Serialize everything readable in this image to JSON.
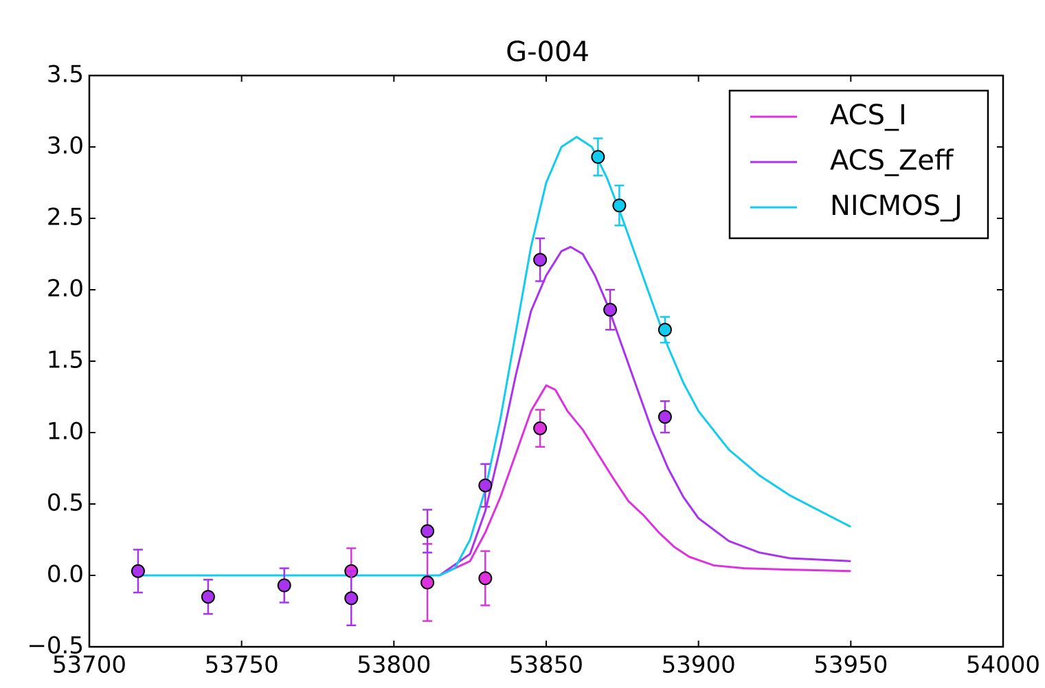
{
  "chart_data": {
    "type": "line",
    "title": "G-004",
    "xlim": [
      53700,
      54000
    ],
    "ylim": [
      -0.5,
      3.5
    ],
    "xticks": [
      53700,
      53750,
      53800,
      53850,
      53900,
      53950,
      54000
    ],
    "yticks": [
      {
        "value": -0.5,
        "label": "−0.5"
      },
      {
        "value": 0,
        "label": "0.0"
      },
      0.5,
      {
        "value": 1,
        "label": "1.0"
      },
      1.5,
      {
        "value": 2,
        "label": "2.0"
      },
      2.5,
      {
        "value": 3,
        "label": "3.0"
      },
      3.5
    ],
    "grid": false,
    "legend": "upper right",
    "series": [
      {
        "name": "ACS_I",
        "color": "#dd33dd",
        "x": [
          53717,
          53815,
          53825,
          53830,
          53835,
          53840,
          53845,
          53850,
          53853,
          53857,
          53862,
          53867,
          53872,
          53877,
          53882,
          53887,
          53892,
          53897,
          53905,
          53915,
          53930,
          53950
        ],
        "values": [
          0,
          0,
          0.1,
          0.3,
          0.55,
          0.85,
          1.15,
          1.33,
          1.3,
          1.15,
          1.02,
          0.85,
          0.68,
          0.52,
          0.42,
          0.3,
          0.2,
          0.13,
          0.07,
          0.05,
          0.04,
          0.03
        ],
        "points": {
          "x": [
            53786,
            53811,
            53830,
            53848
          ],
          "values": [
            0.03,
            -0.05,
            -0.02,
            1.03
          ],
          "errors": [
            0.16,
            0.27,
            0.19,
            0.13
          ]
        }
      },
      {
        "name": "ACS_Zeff",
        "color": "#aa33ee",
        "x": [
          53717,
          53815,
          53825,
          53830,
          53835,
          53840,
          53845,
          53850,
          53855,
          53858,
          53862,
          53866,
          53870,
          53875,
          53880,
          53885,
          53890,
          53895,
          53900,
          53910,
          53920,
          53930,
          53940,
          53950
        ],
        "values": [
          0,
          0,
          0.15,
          0.45,
          0.9,
          1.4,
          1.85,
          2.1,
          2.27,
          2.3,
          2.25,
          2.1,
          1.9,
          1.6,
          1.3,
          1.0,
          0.75,
          0.55,
          0.4,
          0.24,
          0.16,
          0.12,
          0.11,
          0.1
        ],
        "points": {
          "x": [
            53716,
            53739,
            53764,
            53786,
            53811,
            53830,
            53848,
            53871,
            53889
          ],
          "values": [
            0.03,
            -0.15,
            -0.07,
            -0.16,
            0.31,
            0.63,
            2.21,
            1.86,
            1.11
          ],
          "errors": [
            0.15,
            0.12,
            0.12,
            0.19,
            0.15,
            0.15,
            0.15,
            0.14,
            0.11
          ]
        }
      },
      {
        "name": "NICMOS_J",
        "color": "#11ccee",
        "x": [
          53717,
          53815,
          53820,
          53825,
          53830,
          53835,
          53840,
          53845,
          53850,
          53855,
          53860,
          53865,
          53870,
          53875,
          53880,
          53885,
          53890,
          53895,
          53900,
          53910,
          53920,
          53930,
          53940,
          53950
        ],
        "values": [
          0,
          0,
          0.05,
          0.25,
          0.6,
          1.1,
          1.7,
          2.3,
          2.75,
          3.0,
          3.07,
          3.0,
          2.78,
          2.5,
          2.2,
          1.9,
          1.6,
          1.35,
          1.15,
          0.88,
          0.7,
          0.56,
          0.45,
          0.34
        ],
        "points": {
          "x": [
            53867,
            53874,
            53889
          ],
          "values": [
            2.93,
            2.59,
            1.72
          ],
          "errors": [
            0.13,
            0.14,
            0.09
          ]
        }
      }
    ]
  }
}
